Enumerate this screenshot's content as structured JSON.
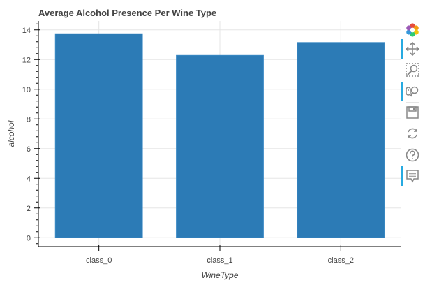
{
  "chart_data": {
    "type": "bar",
    "title": "Average Alcohol Presence Per Wine Type",
    "categories": [
      "class_0",
      "class_1",
      "class_2"
    ],
    "values": [
      13.74,
      12.28,
      13.15
    ],
    "xlabel": "WineType",
    "ylabel": "alcohol",
    "ylim": [
      -0.6,
      14.6
    ],
    "yticks": [
      0,
      2,
      4,
      6,
      8,
      10,
      12,
      14
    ],
    "grid": true,
    "bar_color": "#2c7bb6"
  },
  "toolbar": {
    "items": [
      {
        "icon": "bokeh-logo-icon",
        "active": false
      },
      {
        "icon": "pan-icon",
        "active": true
      },
      {
        "icon": "box-zoom-icon",
        "active": false
      },
      {
        "icon": "wheel-zoom-icon",
        "active": true
      },
      {
        "icon": "save-icon",
        "active": false
      },
      {
        "icon": "reset-icon",
        "active": false
      },
      {
        "icon": "help-icon",
        "active": false
      },
      {
        "icon": "hover-icon",
        "active": true
      }
    ]
  }
}
